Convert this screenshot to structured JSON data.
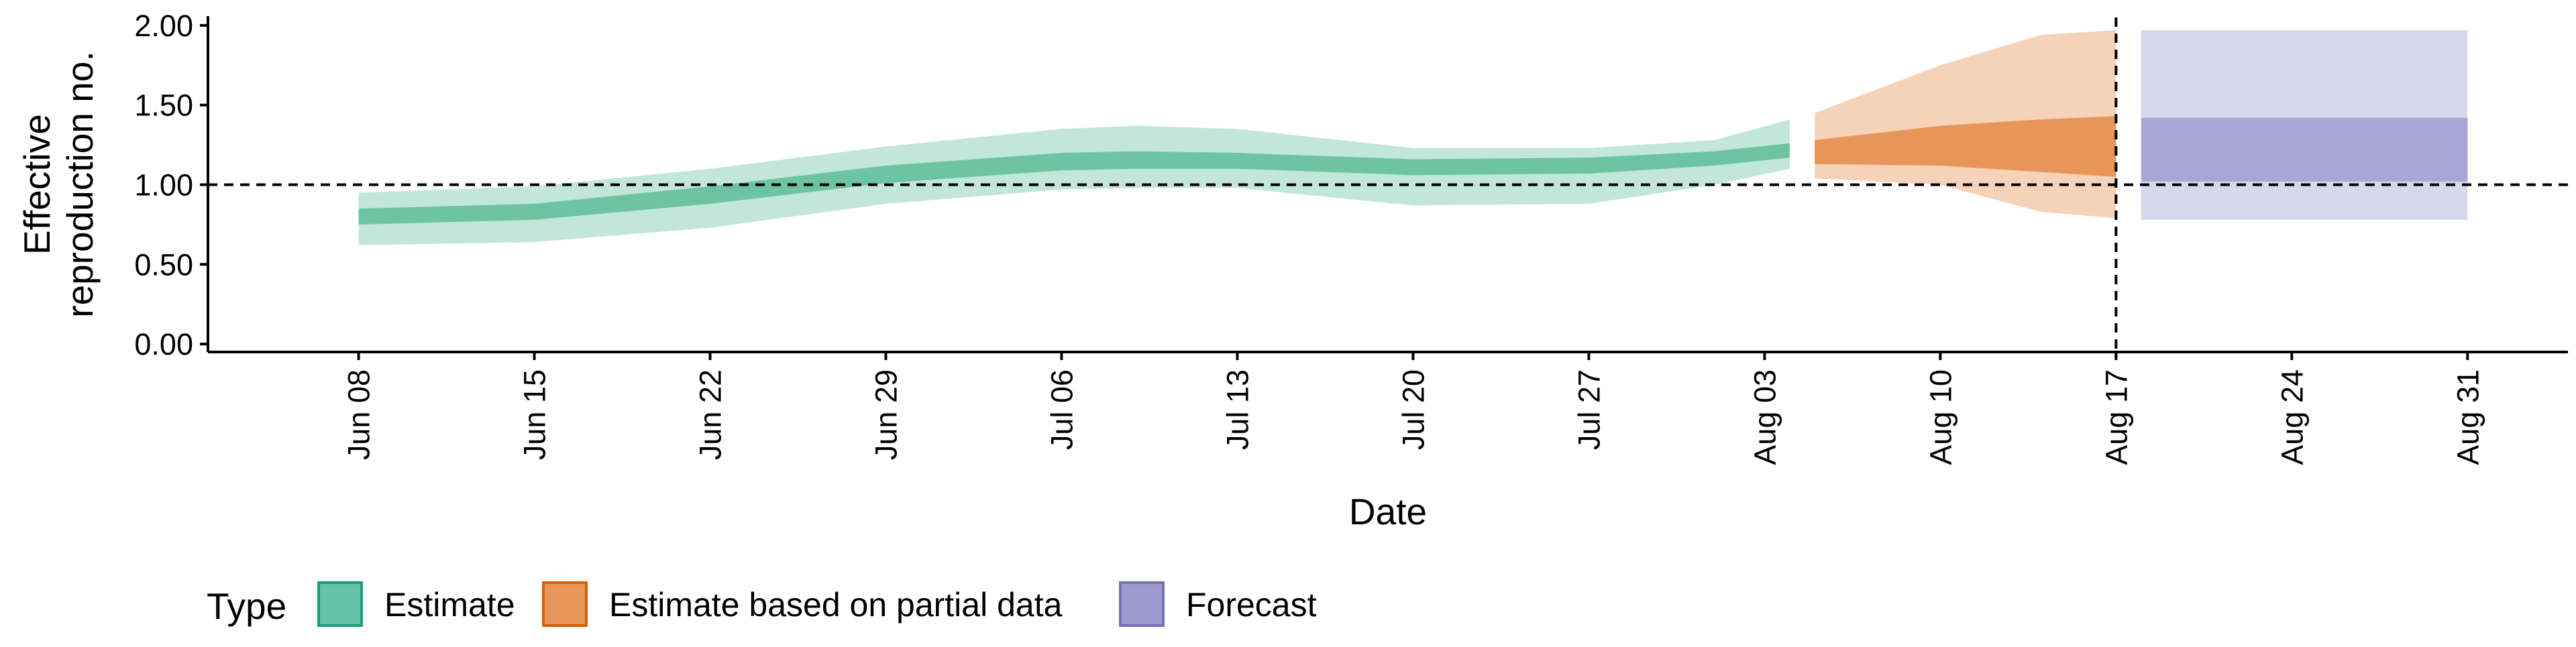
{
  "chart_data": {
    "type": "area",
    "xlabel": "Date",
    "ylabel_lines": [
      "Effective",
      "reproduction no."
    ],
    "ylim": [
      -0.05,
      2.05
    ],
    "yticks": [
      {
        "value": 0.0,
        "label": "0.00"
      },
      {
        "value": 0.5,
        "label": "0.50"
      },
      {
        "value": 1.0,
        "label": "1.00"
      },
      {
        "value": 1.5,
        "label": "1.50"
      },
      {
        "value": 2.0,
        "label": "2.00"
      }
    ],
    "x_range": [
      "2020-06-02",
      "2020-09-04"
    ],
    "xticks": [
      {
        "date": "2020-06-08",
        "label": "Jun 08"
      },
      {
        "date": "2020-06-15",
        "label": "Jun 15"
      },
      {
        "date": "2020-06-22",
        "label": "Jun 22"
      },
      {
        "date": "2020-06-29",
        "label": "Jun 29"
      },
      {
        "date": "2020-07-06",
        "label": "Jul 06"
      },
      {
        "date": "2020-07-13",
        "label": "Jul 13"
      },
      {
        "date": "2020-07-20",
        "label": "Jul 20"
      },
      {
        "date": "2020-07-27",
        "label": "Jul 27"
      },
      {
        "date": "2020-08-03",
        "label": "Aug 03"
      },
      {
        "date": "2020-08-10",
        "label": "Aug 10"
      },
      {
        "date": "2020-08-17",
        "label": "Aug 17"
      },
      {
        "date": "2020-08-24",
        "label": "Aug 24"
      },
      {
        "date": "2020-08-31",
        "label": "Aug 31"
      }
    ],
    "hline": 1.0,
    "vline": "2020-08-17",
    "legend": {
      "title": "Type",
      "position": "bottom-left",
      "items": [
        {
          "label": "Estimate",
          "fill": "#66c2a5",
          "stroke": "#1b9e77"
        },
        {
          "label": "Estimate based on partial data",
          "fill": "#e8955a",
          "stroke": "#d95f02"
        },
        {
          "label": "Forecast",
          "fill": "#9e9ad0",
          "stroke": "#7570b3"
        }
      ]
    },
    "series": [
      {
        "name": "Estimate",
        "outer_color": "#c3e6da",
        "inner_color": "#6cc4a3",
        "points": [
          {
            "date": "2020-06-08",
            "lo90": 0.62,
            "lo50": 0.75,
            "hi50": 0.85,
            "hi90": 0.95
          },
          {
            "date": "2020-06-15",
            "lo90": 0.64,
            "lo50": 0.78,
            "hi50": 0.88,
            "hi90": 0.99
          },
          {
            "date": "2020-06-22",
            "lo90": 0.73,
            "lo50": 0.88,
            "hi50": 0.99,
            "hi90": 1.1
          },
          {
            "date": "2020-06-29",
            "lo90": 0.88,
            "lo50": 1.01,
            "hi50": 1.12,
            "hi90": 1.24
          },
          {
            "date": "2020-07-06",
            "lo90": 0.97,
            "lo50": 1.09,
            "hi50": 1.2,
            "hi90": 1.35
          },
          {
            "date": "2020-07-09",
            "lo90": 0.98,
            "lo50": 1.1,
            "hi50": 1.21,
            "hi90": 1.37
          },
          {
            "date": "2020-07-13",
            "lo90": 0.98,
            "lo50": 1.1,
            "hi50": 1.2,
            "hi90": 1.35
          },
          {
            "date": "2020-07-20",
            "lo90": 0.87,
            "lo50": 1.06,
            "hi50": 1.16,
            "hi90": 1.23
          },
          {
            "date": "2020-07-27",
            "lo90": 0.88,
            "lo50": 1.07,
            "hi50": 1.17,
            "hi90": 1.23
          },
          {
            "date": "2020-08-01",
            "lo90": 1.0,
            "lo50": 1.12,
            "hi50": 1.21,
            "hi90": 1.28
          },
          {
            "date": "2020-08-04",
            "lo90": 1.1,
            "lo50": 1.17,
            "hi50": 1.26,
            "hi90": 1.41
          }
        ]
      },
      {
        "name": "Estimate based on partial data",
        "outer_color": "#f5d2b8",
        "inner_color": "#e8955a",
        "points": [
          {
            "date": "2020-08-05",
            "lo90": 1.04,
            "lo50": 1.13,
            "hi50": 1.28,
            "hi90": 1.45
          },
          {
            "date": "2020-08-10",
            "lo90": 1.0,
            "lo50": 1.12,
            "hi50": 1.37,
            "hi90": 1.75
          },
          {
            "date": "2020-08-14",
            "lo90": 0.83,
            "lo50": 1.08,
            "hi50": 1.41,
            "hi90": 1.94
          },
          {
            "date": "2020-08-17",
            "lo90": 0.79,
            "lo50": 1.05,
            "hi50": 1.43,
            "hi90": 1.97
          }
        ]
      },
      {
        "name": "Forecast",
        "outer_color": "#d8d8ec",
        "inner_color": "#a9a5d5",
        "points": [
          {
            "date": "2020-08-18",
            "lo90": 0.78,
            "lo50": 1.02,
            "hi50": 1.42,
            "hi90": 1.97
          },
          {
            "date": "2020-08-31",
            "lo90": 0.78,
            "lo50": 1.02,
            "hi50": 1.42,
            "hi90": 1.97
          }
        ]
      }
    ]
  }
}
